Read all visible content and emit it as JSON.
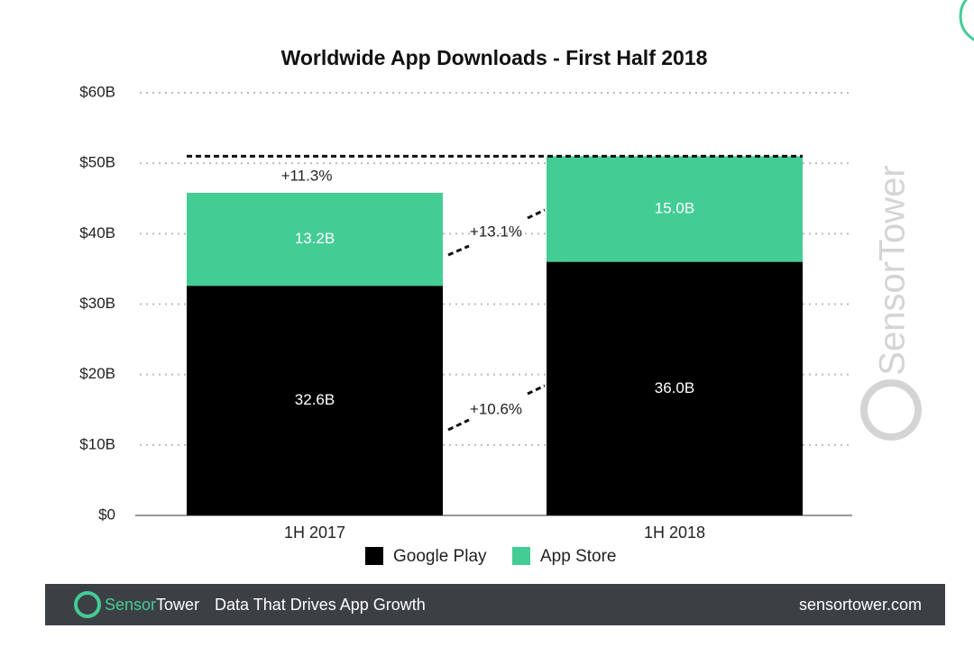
{
  "chart_data": {
    "type": "stacked_bar",
    "title": "Worldwide App Downloads - First Half 2018",
    "categories": [
      "1H 2017",
      "1H 2018"
    ],
    "series": [
      {
        "name": "Google Play",
        "color": "#000000",
        "values": [
          32.6,
          36.0
        ],
        "value_labels": [
          "32.6B",
          "36.0B"
        ]
      },
      {
        "name": "App Store",
        "color": "#44cc95",
        "values": [
          13.2,
          15.0
        ],
        "value_labels": [
          "13.2B",
          "15.0B"
        ]
      }
    ],
    "ylim": [
      0,
      60
    ],
    "yticks": [
      {
        "value": 0,
        "label": "$0"
      },
      {
        "value": 10,
        "label": "$10B"
      },
      {
        "value": 20,
        "label": "$20B"
      },
      {
        "value": 30,
        "label": "$30B"
      },
      {
        "value": 40,
        "label": "$40B"
      },
      {
        "value": 50,
        "label": "$50B"
      },
      {
        "value": 60,
        "label": "$60B"
      }
    ],
    "grid": true,
    "annotations": [
      "+11.3%",
      "+13.1%",
      "+10.6%"
    ],
    "watermark": "SensorTower"
  },
  "footer": {
    "brand_first": "Sensor",
    "brand_second": "Tower",
    "tagline": "Data That Drives App Growth",
    "url": "sensortower.com"
  }
}
